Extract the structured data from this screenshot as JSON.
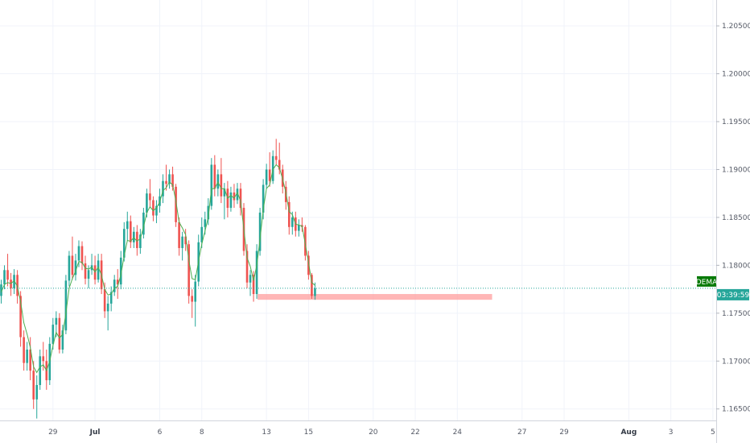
{
  "chart_data": {
    "type": "candlestick",
    "title": "",
    "colors": {
      "up": "#26a69a",
      "down": "#ef5350",
      "ma_line": "#4caf50",
      "support_zone": "#ff9e9e",
      "last_price_line": "#26a69a",
      "indicator_badge": "#067a06",
      "grid": "#f0f3fa",
      "axis_text": "#555a66"
    },
    "y_axis": {
      "ylim": [
        1.1638,
        1.2077
      ],
      "tick_values": [
        1.205,
        1.2,
        1.195,
        1.19,
        1.185,
        1.18,
        1.175,
        1.17,
        1.165
      ],
      "tick_labels": [
        "1.20500",
        "1.20000",
        "1.19500",
        "1.19000",
        "1.18500",
        "1.18000",
        "1.17500",
        "1.17000",
        "1.16500"
      ],
      "position": "right"
    },
    "x_axis": {
      "ticks": [
        {
          "label": "29",
          "bar": 16,
          "bold": false
        },
        {
          "label": "Jul",
          "bar": 29,
          "bold": true
        },
        {
          "label": "6",
          "bar": 49,
          "bold": false
        },
        {
          "label": "8",
          "bar": 62,
          "bold": false
        },
        {
          "label": "13",
          "bar": 82,
          "bold": false
        },
        {
          "label": "15",
          "bar": 95,
          "bold": false
        },
        {
          "label": "20",
          "bar": 115,
          "bold": false
        },
        {
          "label": "22",
          "bar": 128,
          "bold": false
        },
        {
          "label": "24",
          "bar": 141,
          "bold": false
        },
        {
          "label": "27",
          "bar": 161,
          "bold": false
        },
        {
          "label": "29",
          "bar": 174,
          "bold": false
        },
        {
          "label": "Aug",
          "bar": 194,
          "bold": true
        },
        {
          "label": "3",
          "bar": 207,
          "bold": false
        },
        {
          "label": "5",
          "bar": 220,
          "bold": false
        }
      ]
    },
    "bars": [
      [
        1.1768,
        1.1785,
        1.176,
        1.178
      ],
      [
        1.178,
        1.18,
        1.1775,
        1.1795
      ],
      [
        1.1795,
        1.1812,
        1.1778,
        1.1785
      ],
      [
        1.1785,
        1.1792,
        1.1768,
        1.1776
      ],
      [
        1.1776,
        1.1796,
        1.177,
        1.179
      ],
      [
        1.179,
        1.1795,
        1.176,
        1.1768
      ],
      [
        1.1768,
        1.1773,
        1.1715,
        1.1725
      ],
      [
        1.1725,
        1.1732,
        1.169,
        1.1698
      ],
      [
        1.1698,
        1.172,
        1.169,
        1.1712
      ],
      [
        1.1712,
        1.1725,
        1.168,
        1.169
      ],
      [
        1.169,
        1.17,
        1.165,
        1.166
      ],
      [
        1.166,
        1.1685,
        1.164,
        1.1675
      ],
      [
        1.1675,
        1.1712,
        1.167,
        1.1705
      ],
      [
        1.1705,
        1.172,
        1.169,
        1.17
      ],
      [
        1.17,
        1.1712,
        1.167,
        1.168
      ],
      [
        1.168,
        1.1725,
        1.1675,
        1.1718
      ],
      [
        1.1718,
        1.1745,
        1.1712,
        1.1738
      ],
      [
        1.1738,
        1.1752,
        1.1725,
        1.1745
      ],
      [
        1.1745,
        1.175,
        1.1708,
        1.1712
      ],
      [
        1.1712,
        1.1738,
        1.1708,
        1.1732
      ],
      [
        1.1732,
        1.179,
        1.1728,
        1.1784
      ],
      [
        1.1784,
        1.1815,
        1.1778,
        1.181
      ],
      [
        1.181,
        1.183,
        1.1785,
        1.179
      ],
      [
        1.179,
        1.1812,
        1.1784,
        1.1805
      ],
      [
        1.1805,
        1.1826,
        1.1798,
        1.182
      ],
      [
        1.182,
        1.1825,
        1.1795,
        1.1802
      ],
      [
        1.1802,
        1.181,
        1.178,
        1.1786
      ],
      [
        1.1786,
        1.18,
        1.1776,
        1.1795
      ],
      [
        1.1795,
        1.1812,
        1.179,
        1.18
      ],
      [
        1.18,
        1.181,
        1.178,
        1.1785
      ],
      [
        1.1785,
        1.1812,
        1.1782,
        1.1805
      ],
      [
        1.1805,
        1.1812,
        1.177,
        1.1775
      ],
      [
        1.1775,
        1.1782,
        1.1745,
        1.1752
      ],
      [
        1.1752,
        1.1768,
        1.1732,
        1.176
      ],
      [
        1.176,
        1.1778,
        1.1752,
        1.1772
      ],
      [
        1.1772,
        1.179,
        1.1768,
        1.1785
      ],
      [
        1.1785,
        1.1796,
        1.1765,
        1.178
      ],
      [
        1.178,
        1.1815,
        1.1775,
        1.1808
      ],
      [
        1.1808,
        1.1845,
        1.1804,
        1.1838
      ],
      [
        1.1838,
        1.1856,
        1.1826,
        1.1846
      ],
      [
        1.1846,
        1.1852,
        1.1818,
        1.1824
      ],
      [
        1.1824,
        1.184,
        1.1818,
        1.1835
      ],
      [
        1.1835,
        1.1842,
        1.181,
        1.1818
      ],
      [
        1.1818,
        1.1838,
        1.1812,
        1.1832
      ],
      [
        1.1832,
        1.186,
        1.1828,
        1.1855
      ],
      [
        1.1855,
        1.188,
        1.185,
        1.1875
      ],
      [
        1.1875,
        1.189,
        1.186,
        1.1868
      ],
      [
        1.1868,
        1.1872,
        1.1846,
        1.1852
      ],
      [
        1.1852,
        1.1868,
        1.1844,
        1.1862
      ],
      [
        1.1862,
        1.188,
        1.1855,
        1.1872
      ],
      [
        1.1872,
        1.1895,
        1.1865,
        1.1888
      ],
      [
        1.1888,
        1.1905,
        1.1878,
        1.1885
      ],
      [
        1.1885,
        1.19,
        1.188,
        1.1895
      ],
      [
        1.1895,
        1.1903,
        1.1878,
        1.1882
      ],
      [
        1.1882,
        1.1885,
        1.184,
        1.1845
      ],
      [
        1.1845,
        1.185,
        1.181,
        1.1818
      ],
      [
        1.1818,
        1.1835,
        1.1805,
        1.183
      ],
      [
        1.183,
        1.1838,
        1.1815,
        1.1822
      ],
      [
        1.1822,
        1.1826,
        1.176,
        1.1768
      ],
      [
        1.1768,
        1.1775,
        1.1745,
        1.1762
      ],
      [
        1.1762,
        1.179,
        1.1736,
        1.1783
      ],
      [
        1.1783,
        1.1832,
        1.1778,
        1.1824
      ],
      [
        1.1824,
        1.185,
        1.1818,
        1.184
      ],
      [
        1.184,
        1.1856,
        1.1832,
        1.1848
      ],
      [
        1.1848,
        1.187,
        1.1842,
        1.1862
      ],
      [
        1.1862,
        1.1912,
        1.1858,
        1.1905
      ],
      [
        1.1905,
        1.1915,
        1.1872,
        1.188
      ],
      [
        1.188,
        1.19,
        1.1872,
        1.1895
      ],
      [
        1.1895,
        1.1912,
        1.1865,
        1.1872
      ],
      [
        1.1872,
        1.1886,
        1.1848,
        1.188
      ],
      [
        1.188,
        1.1888,
        1.185,
        1.186
      ],
      [
        1.186,
        1.1882,
        1.1856,
        1.1876
      ],
      [
        1.1876,
        1.1885,
        1.186,
        1.1868
      ],
      [
        1.1868,
        1.1886,
        1.1864,
        1.188
      ],
      [
        1.188,
        1.1886,
        1.1852,
        1.186
      ],
      [
        1.186,
        1.1865,
        1.181,
        1.1815
      ],
      [
        1.1815,
        1.1822,
        1.1776,
        1.1782
      ],
      [
        1.1782,
        1.1795,
        1.1768,
        1.179
      ],
      [
        1.179,
        1.1794,
        1.1762,
        1.177
      ],
      [
        1.177,
        1.1822,
        1.1765,
        1.1815
      ],
      [
        1.1815,
        1.186,
        1.181,
        1.1855
      ],
      [
        1.1855,
        1.189,
        1.1848,
        1.1884
      ],
      [
        1.1884,
        1.1906,
        1.188,
        1.19
      ],
      [
        1.19,
        1.1918,
        1.1882,
        1.1888
      ],
      [
        1.1888,
        1.192,
        1.1885,
        1.1914
      ],
      [
        1.1914,
        1.1932,
        1.1905,
        1.191
      ],
      [
        1.191,
        1.1928,
        1.1895,
        1.19
      ],
      [
        1.19,
        1.1905,
        1.1875,
        1.1882
      ],
      [
        1.1882,
        1.1888,
        1.1858,
        1.1866
      ],
      [
        1.1866,
        1.1872,
        1.1832,
        1.184
      ],
      [
        1.184,
        1.1856,
        1.1832,
        1.185
      ],
      [
        1.185,
        1.1856,
        1.183,
        1.1836
      ],
      [
        1.1836,
        1.1848,
        1.183,
        1.1842
      ],
      [
        1.1842,
        1.185,
        1.1835,
        1.184
      ],
      [
        1.184,
        1.1842,
        1.1805,
        1.181
      ],
      [
        1.181,
        1.1815,
        1.1785,
        1.179
      ],
      [
        1.179,
        1.1792,
        1.1765,
        1.1768
      ],
      [
        1.1768,
        1.1782,
        1.1764,
        1.1776
      ]
    ],
    "ma_values": [
      1.1772,
      1.178,
      1.1782,
      1.1781,
      1.1784,
      1.1778,
      1.1762,
      1.174,
      1.1728,
      1.1714,
      1.1694,
      1.1688,
      1.1694,
      1.1696,
      1.169,
      1.17,
      1.1716,
      1.173,
      1.1724,
      1.1728,
      1.175,
      1.1776,
      1.1786,
      1.1794,
      1.1804,
      1.1803,
      1.1797,
      1.1796,
      1.1798,
      1.1793,
      1.1798,
      1.179,
      1.1775,
      1.1769,
      1.177,
      1.1776,
      1.1778,
      1.179,
      1.181,
      1.1826,
      1.1825,
      1.1829,
      1.1825,
      1.1828,
      1.184,
      1.1855,
      1.1861,
      1.1857,
      1.186,
      1.1866,
      1.1878,
      1.1881,
      1.1887,
      1.1884,
      1.1867,
      1.1845,
      1.1839,
      1.1832,
      1.1805,
      1.1786,
      1.1785,
      1.1804,
      1.1822,
      1.1836,
      1.185,
      1.188,
      1.188,
      1.1887,
      1.188,
      1.188,
      1.187,
      1.1873,
      1.187,
      1.1876,
      1.1867,
      1.1838,
      1.1808,
      1.1799,
      1.1784,
      1.18,
      1.1827,
      1.1858,
      1.188,
      1.1884,
      1.19,
      1.1905,
      1.1902,
      1.189,
      1.1876,
      1.1856,
      1.1853,
      1.1843,
      1.1842,
      1.1841,
      1.1822,
      1.1803,
      1.1782,
      1.1779
    ],
    "support_zone": {
      "from": 1.1764,
      "to": 1.177,
      "start_bar": 80,
      "end_bar": 151
    },
    "last_price": 1.1776,
    "indicator_label": "DEMA",
    "countdown": "03:39:59"
  }
}
